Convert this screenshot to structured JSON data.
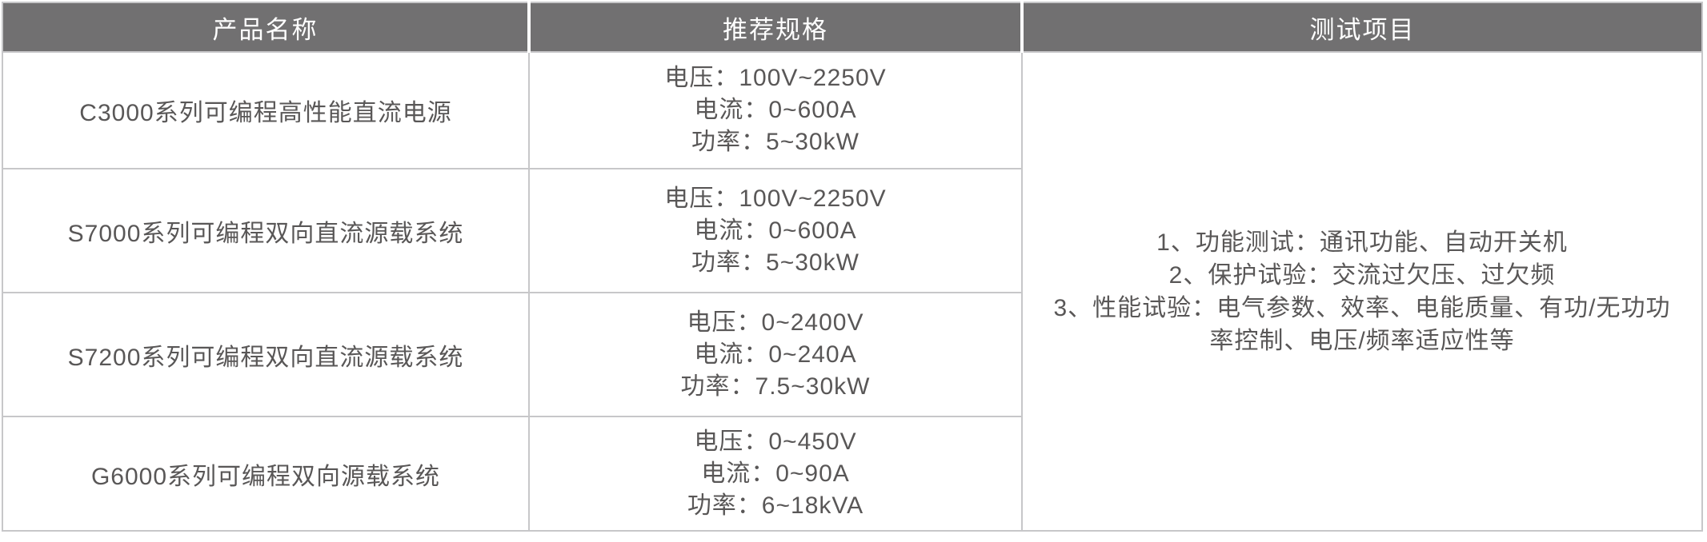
{
  "table": {
    "columns": [
      {
        "label": "产品名称"
      },
      {
        "label": "推荐规格"
      },
      {
        "label": "测试项目"
      }
    ],
    "rows": [
      {
        "product": "C3000系列可编程高性能直流电源",
        "specs": [
          "电压：100V~2250V",
          "电流：0~600A",
          "功率：5~30kW"
        ]
      },
      {
        "product": "S7000系列可编程双向直流源载系统",
        "specs": [
          "电压：100V~2250V",
          "电流：0~600A",
          "功率：5~30kW"
        ]
      },
      {
        "product": "S7200系列可编程双向直流源载系统",
        "specs": [
          "电压：0~2400V",
          "电流：0~240A",
          "功率：7.5~30kW"
        ]
      },
      {
        "product": "G6000系列可编程双向源载系统",
        "specs": [
          "电压：0~450V",
          "电流：0~90A",
          "功率：6~18kVA"
        ]
      }
    ],
    "test_items": [
      "1、功能测试：通讯功能、自动开关机",
      "2、保护试验：交流过欠压、过欠频",
      "3、性能试验：电气参数、效率、电能质量、有功/无功功率控制、电压/频率适应性等"
    ],
    "colors": {
      "header_bg": "#717071",
      "header_text": "#ffffff",
      "body_text": "#595757",
      "border": "#c7c7c9"
    }
  }
}
